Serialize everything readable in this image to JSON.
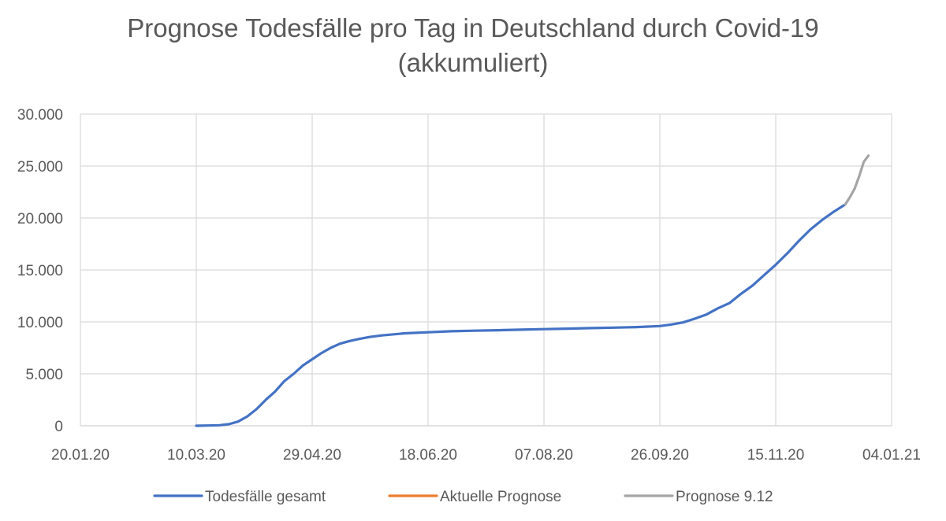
{
  "chart_data": {
    "type": "line",
    "title_line1": "Prognose Todesfälle pro Tag in Deutschland durch Covid-19",
    "title_line2": "(akkumuliert)",
    "xlabel": "",
    "ylabel": "",
    "x_ticks": [
      "20.01.20",
      "10.03.20",
      "29.04.20",
      "18.06.20",
      "07.08.20",
      "26.09.20",
      "15.11.20",
      "04.01.21"
    ],
    "y_ticks": [
      "0",
      "5.000",
      "10.000",
      "15.000",
      "20.000",
      "25.000",
      "30.000"
    ],
    "x_range_days": [
      0,
      350
    ],
    "ylim": [
      0,
      30000
    ],
    "grid": true,
    "legend_position": "bottom",
    "series": [
      {
        "name": "Todesfälle gesamt",
        "color": "#4472C4",
        "x_days": [
          50,
          55,
          60,
          64,
          68,
          72,
          76,
          80,
          84,
          88,
          92,
          96,
          100,
          104,
          108,
          112,
          116,
          120,
          125,
          130,
          140,
          150,
          160,
          170,
          180,
          190,
          200,
          210,
          220,
          230,
          240,
          250,
          255,
          260,
          265,
          270,
          275,
          280,
          285,
          290,
          295,
          300,
          305,
          310,
          315,
          320,
          325,
          330
        ],
        "values": [
          0,
          20,
          50,
          150,
          400,
          900,
          1600,
          2500,
          3300,
          4300,
          5000,
          5800,
          6400,
          7000,
          7500,
          7900,
          8150,
          8350,
          8550,
          8700,
          8900,
          9000,
          9100,
          9150,
          9200,
          9250,
          9300,
          9350,
          9400,
          9450,
          9500,
          9600,
          9750,
          9950,
          10300,
          10700,
          11300,
          11800,
          12700,
          13500,
          14500,
          15500,
          16600,
          17800,
          18900,
          19800,
          20600,
          21300
        ]
      },
      {
        "name": "Aktuelle Prognose",
        "color": "#ED7D31",
        "x_days": [],
        "values": []
      },
      {
        "name": "Prognose 9.12",
        "color": "#A5A5A5",
        "x_days": [
          330,
          332,
          334,
          336,
          338,
          340
        ],
        "values": [
          21300,
          22000,
          22800,
          24000,
          25400,
          26000
        ]
      }
    ]
  }
}
